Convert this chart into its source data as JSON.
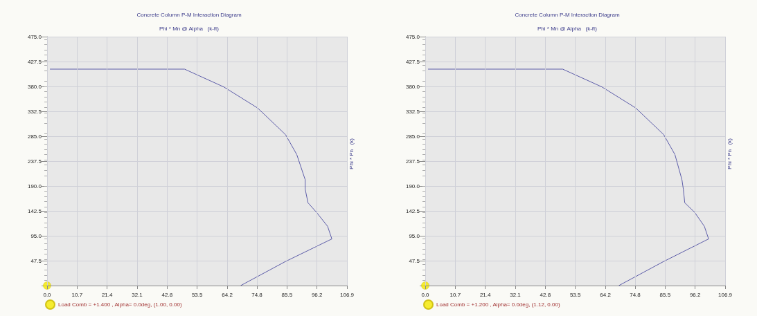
{
  "chart_data": [
    {
      "type": "line",
      "title": "Concrete Column P-M Interaction Diagram",
      "xlabel": "Phi * Mn @ Alpha   (k-ft)",
      "ylabel": "Phi * Pn   (k)",
      "series": [
        {
          "color": "#5c5ca8",
          "x": [
            1,
            49,
            63,
            75,
            85,
            89,
            92,
            92,
            93,
            96,
            100,
            101.5,
            85,
            69
          ],
          "values": [
            413,
            413,
            379,
            339,
            288,
            250,
            202,
            184,
            158,
            140,
            113,
            89,
            46,
            0
          ]
        },
        {
          "type": "scatter",
          "name": "Load Comb = +1.400 , Alpha= 0.0deg, (1.00, 0.00)",
          "color": "#f5e800",
          "x": [
            0
          ],
          "values": [
            0
          ]
        }
      ],
      "xlim": [
        0,
        106.9
      ],
      "ylim": [
        0,
        475
      ],
      "xticks": [
        {
          "value": 0,
          "label": "0.0"
        },
        10.7,
        21.4,
        32.1,
        42.8,
        53.5,
        64.2,
        74.8,
        85.5,
        96.2,
        106.9
      ],
      "yticks": [
        {
          "value": 0,
          "label": null
        },
        47.5,
        {
          "value": 95,
          "label": "95.0"
        },
        142.5,
        {
          "value": 190,
          "label": "190.0"
        },
        237.5,
        {
          "value": 285,
          "label": "285.0"
        },
        332.5,
        {
          "value": 380,
          "label": "380.0"
        },
        427.5,
        {
          "value": 475,
          "label": "475.0"
        }
      ],
      "grid": true,
      "legend": "bottom left",
      "line_style": "solid"
    },
    {
      "type": "line",
      "title": "Concrete Column P-M Interaction Diagram",
      "xlabel": "Phi * Mn @ Alpha   (k-ft)",
      "ylabel": "Phi * Pn   (k)",
      "series": [
        {
          "color": "#5c5ca8",
          "x": [
            1,
            49,
            63,
            75,
            85,
            89,
            91.5,
            92,
            92.5,
            96,
            99.5,
            101,
            85,
            69
          ],
          "values": [
            413,
            413,
            379,
            339,
            288,
            250,
            202,
            184,
            158,
            140,
            113,
            89,
            46,
            0
          ]
        },
        {
          "type": "scatter",
          "name": "Load Comb = +1.200 , Alpha= 0.0deg, (1.12, 0.00)",
          "color": "#f5e800",
          "x": [
            0
          ],
          "values": [
            0
          ]
        }
      ],
      "xlim": [
        0,
        106.9
      ],
      "ylim": [
        0,
        475
      ],
      "xticks": [
        {
          "value": 0,
          "label": "0.0"
        },
        10.7,
        21.4,
        32.1,
        42.8,
        53.5,
        64.2,
        74.8,
        85.5,
        96.2,
        106.9
      ],
      "yticks": [
        {
          "value": 0,
          "label": null
        },
        47.5,
        {
          "value": 95,
          "label": "95.0"
        },
        142.5,
        {
          "value": 190,
          "label": "190.0"
        },
        237.5,
        {
          "value": 285,
          "label": "285.0"
        },
        332.5,
        {
          "value": 380,
          "label": "380.0"
        },
        427.5,
        {
          "value": 475,
          "label": "475.0"
        }
      ],
      "grid": true,
      "legend": "bottom left",
      "line_style": "solid"
    }
  ]
}
